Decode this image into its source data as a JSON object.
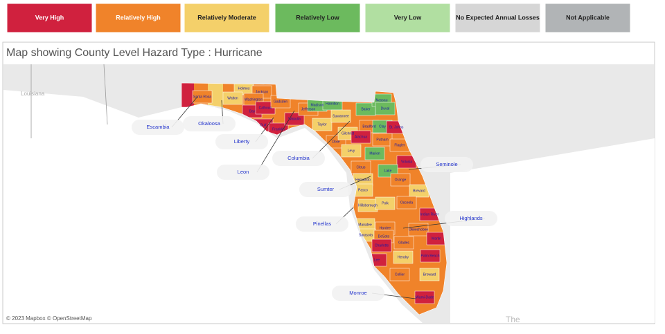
{
  "legend": [
    {
      "label": "Very High",
      "color": "#d0213e"
    },
    {
      "label": "Relatively High",
      "color": "#f0832a"
    },
    {
      "label": "Relatively Moderate",
      "color": "#f4d06a"
    },
    {
      "label": "Relatively Low",
      "color": "#6cba5e"
    },
    {
      "label": "Very Low",
      "color": "#b1dfa1"
    },
    {
      "label": "No Expected Annual Losses",
      "color": "#d6d6d6"
    },
    {
      "label": "Not Applicable",
      "color": "#b1b4b6"
    }
  ],
  "title": "Map showing County Level Hazard Type : Hurricane",
  "map": {
    "region_label": "Louisiana",
    "corner_label": "The",
    "attribution": "© 2023 Mapbox © OpenStreetMap",
    "counties": [
      {
        "name": "Santa Rosa",
        "color": "#f0832a"
      },
      {
        "name": "Holmes",
        "color": "#f4d06a"
      },
      {
        "name": "Jackson",
        "color": "#f0832a"
      },
      {
        "name": "Walton",
        "color": "#f4d06a"
      },
      {
        "name": "Washington",
        "color": "#f0832a"
      },
      {
        "name": "Bay",
        "color": "#d0213e"
      },
      {
        "name": "Calhoun",
        "color": "#d0213e"
      },
      {
        "name": "Gadsden",
        "color": "#f0832a"
      },
      {
        "name": "Gulf",
        "color": "#d0213e"
      },
      {
        "name": "Franklin",
        "color": "#d0213e"
      },
      {
        "name": "Wakulla",
        "color": "#d0213e"
      },
      {
        "name": "Jefferson",
        "color": "#f0832a"
      },
      {
        "name": "Madison",
        "color": "#6cba5e"
      },
      {
        "name": "Hamilton",
        "color": "#6cba5e"
      },
      {
        "name": "Taylor",
        "color": "#f4d06a"
      },
      {
        "name": "Suwannee",
        "color": "#f4d06a"
      },
      {
        "name": "Baker",
        "color": "#6cba5e"
      },
      {
        "name": "Nassau",
        "color": "#6cba5e"
      },
      {
        "name": "Duval",
        "color": "#6cba5e"
      },
      {
        "name": "Dixie",
        "color": "#f0832a"
      },
      {
        "name": "Gilchrist",
        "color": "#f4d06a"
      },
      {
        "name": "Bradford",
        "color": "#f0832a"
      },
      {
        "name": "Clay",
        "color": "#6cba5e"
      },
      {
        "name": "St. Johns",
        "color": "#d0213e"
      },
      {
        "name": "Alachua",
        "color": "#d0213e"
      },
      {
        "name": "Putnam",
        "color": "#f0832a"
      },
      {
        "name": "Flagler",
        "color": "#f0832a"
      },
      {
        "name": "Levy",
        "color": "#f4d06a"
      },
      {
        "name": "Marion",
        "color": "#6cba5e"
      },
      {
        "name": "Volusia",
        "color": "#d0213e"
      },
      {
        "name": "Lake",
        "color": "#6cba5e"
      },
      {
        "name": "Citrus",
        "color": "#f0832a"
      },
      {
        "name": "Hernando",
        "color": "#f4d06a"
      },
      {
        "name": "Orange",
        "color": "#f0832a"
      },
      {
        "name": "Brevard",
        "color": "#f4d06a"
      },
      {
        "name": "Pasco",
        "color": "#f4d06a"
      },
      {
        "name": "Hillsborough",
        "color": "#f4d06a"
      },
      {
        "name": "Polk",
        "color": "#f4d06a"
      },
      {
        "name": "Osceola",
        "color": "#f0832a"
      },
      {
        "name": "Indian River",
        "color": "#d0213e"
      },
      {
        "name": "Manatee",
        "color": "#f4d06a"
      },
      {
        "name": "Hardee",
        "color": "#f0832a"
      },
      {
        "name": "Okeechobee",
        "color": "#f0832a"
      },
      {
        "name": "Sarasota",
        "color": "#f4d06a"
      },
      {
        "name": "DeSoto",
        "color": "#f0832a"
      },
      {
        "name": "Martin",
        "color": "#d0213e"
      },
      {
        "name": "Charlotte",
        "color": "#d0213e"
      },
      {
        "name": "Glades",
        "color": "#f0832a"
      },
      {
        "name": "Lee",
        "color": "#d0213e"
      },
      {
        "name": "Hendry",
        "color": "#f4d06a"
      },
      {
        "name": "Palm Beach",
        "color": "#d0213e"
      },
      {
        "name": "Collier",
        "color": "#f0832a"
      },
      {
        "name": "Broward",
        "color": "#f4d06a"
      },
      {
        "name": "Miami-Dade",
        "color": "#d0213e"
      }
    ],
    "callouts": [
      "Escambia",
      "Okaloosa",
      "Liberty",
      "Leon",
      "Columbia",
      "Seminole",
      "Sumter",
      "Pinellas",
      "Highlands",
      "Monroe"
    ]
  }
}
